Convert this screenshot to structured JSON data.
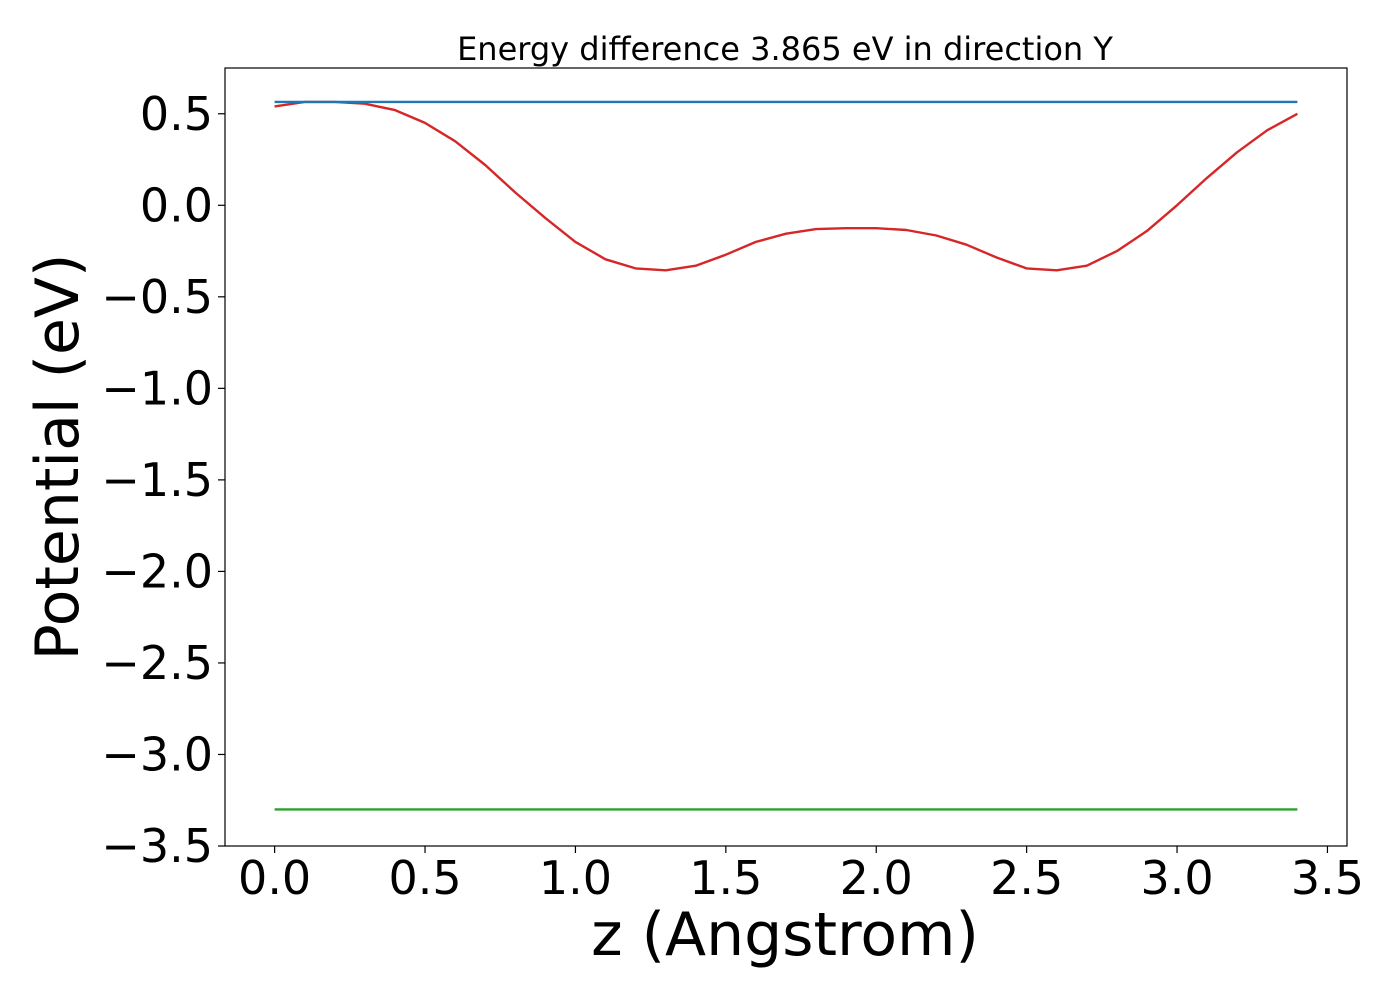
{
  "chart_data": {
    "type": "line",
    "title": "Energy difference 3.865 eV in direction Y",
    "xlabel": "z (Angstrom)",
    "ylabel": "Potential (eV)",
    "xlim": [
      -0.165,
      3.565
    ],
    "ylim": [
      -3.5,
      0.75
    ],
    "xticks": [
      0.0,
      0.5,
      1.0,
      1.5,
      2.0,
      2.5,
      3.0,
      3.5
    ],
    "xtick_labels": [
      "0.0",
      "0.5",
      "1.0",
      "1.5",
      "2.0",
      "2.5",
      "3.0",
      "3.5"
    ],
    "yticks": [
      0.5,
      0.0,
      -0.5,
      -1.0,
      -1.5,
      -2.0,
      -2.5,
      -3.0,
      -3.5
    ],
    "ytick_labels": [
      "0.5",
      "0.0",
      "−0.5",
      "−1.0",
      "−1.5",
      "−2.0",
      "−2.5",
      "−3.0",
      "−3.5"
    ],
    "grid": false,
    "legend": null,
    "series": [
      {
        "color": "#d62728",
        "x": [
          0.0,
          0.1,
          0.2,
          0.3,
          0.4,
          0.5,
          0.6,
          0.7,
          0.8,
          0.9,
          1.0,
          1.1,
          1.2,
          1.3,
          1.4,
          1.5,
          1.6,
          1.7,
          1.8,
          1.9,
          2.0,
          2.1,
          2.2,
          2.3,
          2.4,
          2.5,
          2.6,
          2.7,
          2.8,
          2.9,
          3.0,
          3.1,
          3.2,
          3.3,
          3.4
        ],
        "y": [
          0.54,
          0.565,
          0.565,
          0.555,
          0.52,
          0.45,
          0.35,
          0.22,
          0.07,
          -0.07,
          -0.2,
          -0.295,
          -0.345,
          -0.355,
          -0.33,
          -0.27,
          -0.2,
          -0.155,
          -0.13,
          -0.125,
          -0.125,
          -0.135,
          -0.165,
          -0.215,
          -0.285,
          -0.345,
          -0.355,
          -0.33,
          -0.25,
          -0.14,
          0.0,
          0.15,
          0.29,
          0.41,
          0.5
        ]
      },
      {
        "color": "#1f77b4",
        "x": [
          0.0,
          3.4
        ],
        "y": [
          0.565,
          0.565
        ]
      },
      {
        "color": "#2ca02c",
        "x": [
          0.0,
          3.4
        ],
        "y": [
          -3.3,
          -3.3
        ]
      }
    ]
  }
}
